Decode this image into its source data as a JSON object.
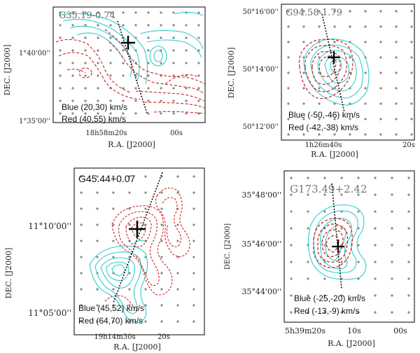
{
  "panels": [
    {
      "name": "G35.19-0.74",
      "dec_label": "DEC. [J2000]",
      "ra_label": "R.A. [J2000]",
      "y_ticks": [
        "1°40'00''",
        "1°35'00''"
      ],
      "x_ticks": [
        "18h58m20s",
        "00s"
      ],
      "blue": "Blue (20,30) km/s",
      "red": "Red (40,55) km/s"
    },
    {
      "name": "G94.58-1.79",
      "dec_label": "DEC. [J2000]",
      "ra_label": "R.A. [J2000]",
      "y_ticks": [
        "50°16'00''",
        "50°14'00''",
        "50°12'00''"
      ],
      "x_ticks": [
        "1h26m40s",
        "20s"
      ],
      "blue": "Blue (-50,-46) km/s",
      "red": "Red (-42,-38) km/s"
    },
    {
      "name": "G45.44+0.07",
      "dec_label": "DEC. [J2000]",
      "ra_label": "R.A. [J2000]",
      "y_ticks": [
        "11°10'00''",
        "11°05'00''"
      ],
      "x_ticks": [
        "19h14m30s",
        "20s"
      ],
      "blue": "Blue (45,52) km/s",
      "red": "Red (64,70) km/s"
    },
    {
      "name": "G173.49+2.42",
      "dec_label": "DEC. [J2000]",
      "ra_label": "R.A. [J2000]",
      "y_ticks": [
        "35°48'00''",
        "35°46'00''",
        "35°44'00''"
      ],
      "x_ticks": [
        "5h39m20s",
        "10s",
        "00s"
      ],
      "blue": "Blue (-25,-20) km/s",
      "red": "Red (-13,-9) km/s"
    }
  ],
  "colors": {
    "blue": "#33cccc",
    "red": "#cc2222",
    "grid": "#888888"
  }
}
